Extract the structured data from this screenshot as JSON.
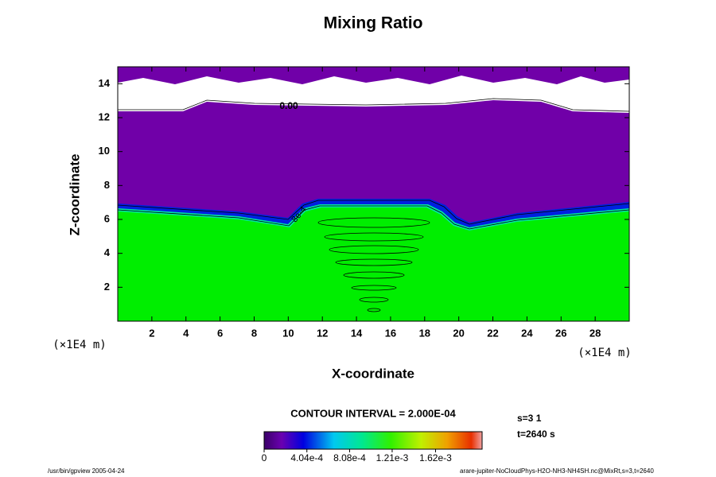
{
  "chart_data": {
    "type": "contour",
    "title": "Mixing Ratio",
    "xlabel": "X-coordinate",
    "ylabel": "Z-coordinate",
    "x_unit": "(×1E4 m)",
    "y_unit": "(×1E4 m)",
    "xlim": [
      0,
      30
    ],
    "xticks": [
      2,
      4,
      6,
      8,
      10,
      12,
      14,
      16,
      18,
      20,
      22,
      24,
      26,
      28
    ],
    "ylim": [
      0,
      15
    ],
    "yticks": [
      2,
      4,
      6,
      8,
      10,
      12,
      14
    ],
    "contour_labels": [
      "0.00",
      "8e-4"
    ],
    "contour_interval": "CONTOUR INTERVAL = 2.000E-04",
    "step_label": "s=3 1",
    "time_label": "t=2640 s",
    "clim": [
      0,
      0.00206
    ],
    "cticks": [
      0,
      {
        "value": 0.000404,
        "label": "4.04e-4"
      },
      {
        "value": 0.000808,
        "label": "8.08e-4"
      },
      {
        "value": 0.00121,
        "label": "1.21e-3"
      },
      {
        "value": 0.00162,
        "label": "1.62e-3"
      }
    ],
    "footer_left": "/usr/bin/gpview 2005-04-24",
    "footer_right": "arare-jupiter-NoCloudPhys-H2O-NH3-NH4SH.nc@MixRt,s=3,t=2640"
  }
}
